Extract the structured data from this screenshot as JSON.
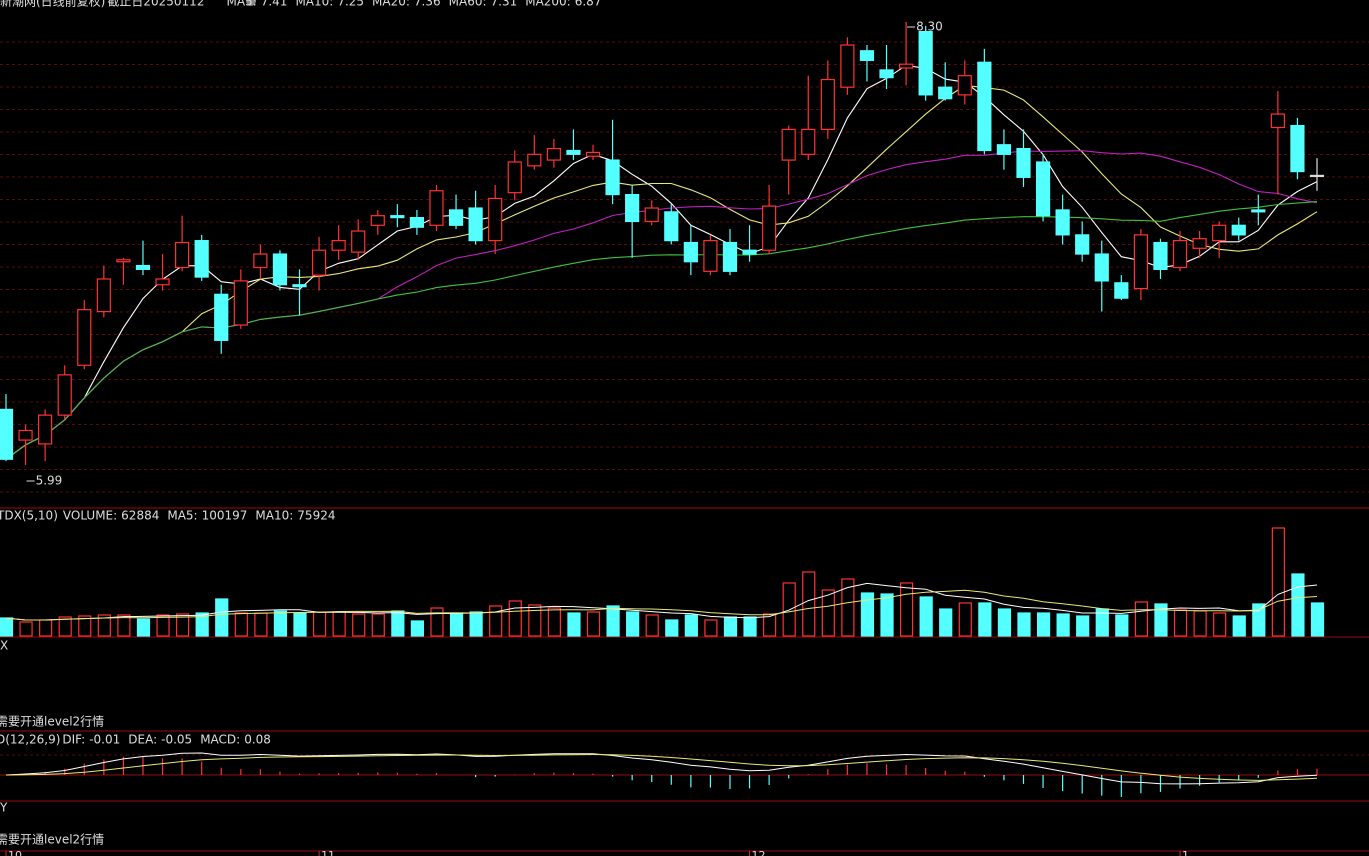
{
  "chart_data": [
    {
      "type": "candlestick",
      "title": "新潮网(日线前复权)",
      "subtitle": "截止日20250112",
      "up_color": "#ff3232",
      "down_color": "#54ffff",
      "flat_color": "#dddddd",
      "ma": [
        {
          "label": "MA5:",
          "period": 5,
          "value": 7.41,
          "color": "#ffffff"
        },
        {
          "label": "MA10:",
          "period": 10,
          "value": 7.25,
          "color": "#e8e87a"
        },
        {
          "label": "MA20:",
          "period": 20,
          "value": 7.36,
          "color": "#c020c0"
        },
        {
          "label": "MA60:",
          "period": 60,
          "value": 7.31,
          "color": "#40c040"
        },
        {
          "label": "MA200:",
          "period": 200,
          "value": 6.87,
          "color": "#b0b0b0"
        }
      ],
      "annotations": [
        {
          "value": 8.3,
          "label": "8.30"
        },
        {
          "value": 5.99,
          "label": "5.99"
        }
      ],
      "categories": [
        "10",
        null,
        null,
        null,
        null,
        null,
        null,
        null,
        null,
        null,
        null,
        null,
        null,
        null,
        null,
        null,
        "11",
        null,
        null,
        null,
        null,
        null,
        null,
        null,
        null,
        null,
        null,
        null,
        null,
        null,
        null,
        null,
        null,
        null,
        null,
        null,
        null,
        null,
        "12",
        null,
        null,
        null,
        null,
        null,
        null,
        null,
        null,
        null,
        null,
        null,
        null,
        null,
        null,
        null,
        null,
        null,
        null,
        null,
        null,
        null,
        "1",
        null,
        null,
        null,
        null,
        null,
        null,
        null
      ],
      "open": [
        6.28,
        6.12,
        6.1,
        6.25,
        6.51,
        6.79,
        7.05,
        7.03,
        6.93,
        7.02,
        7.16,
        6.88,
        6.72,
        7.02,
        7.09,
        6.93,
        6.98,
        7.11,
        7.1,
        7.24,
        7.29,
        7.28,
        7.24,
        7.32,
        7.33,
        7.16,
        7.41,
        7.55,
        7.58,
        7.63,
        7.6,
        7.58,
        7.4,
        7.26,
        7.31,
        7.15,
        7.0,
        7.15,
        7.11,
        7.11,
        7.58,
        7.61,
        7.74,
        7.96,
        8.15,
        8.05,
        8.06,
        8.25,
        7.96,
        7.92,
        8.09,
        7.66,
        7.64,
        7.57,
        7.32,
        7.19,
        7.09,
        6.94,
        6.91,
        7.15,
        7.02,
        7.12,
        7.16,
        7.24,
        7.32,
        7.75,
        7.76,
        7.5
      ],
      "high": [
        6.36,
        6.2,
        6.28,
        6.51,
        6.85,
        7.03,
        7.07,
        7.16,
        7.09,
        7.29,
        7.19,
        6.93,
        7.01,
        7.14,
        7.11,
        7.01,
        7.18,
        7.24,
        7.27,
        7.32,
        7.35,
        7.32,
        7.45,
        7.4,
        7.42,
        7.45,
        7.63,
        7.71,
        7.69,
        7.74,
        7.66,
        7.79,
        7.45,
        7.37,
        7.35,
        7.24,
        7.19,
        7.22,
        7.24,
        7.45,
        7.76,
        8.02,
        8.1,
        8.22,
        8.18,
        8.18,
        8.3,
        8.28,
        8.09,
        8.1,
        8.16,
        7.74,
        7.74,
        7.61,
        7.4,
        7.26,
        7.16,
        6.98,
        7.22,
        7.17,
        7.21,
        7.21,
        7.26,
        7.28,
        7.4,
        7.94,
        7.8,
        7.59
      ],
      "low": [
        6.01,
        5.99,
        6.01,
        6.23,
        6.49,
        6.76,
        6.93,
        6.98,
        6.9,
        7.0,
        6.95,
        6.57,
        6.7,
        6.96,
        6.9,
        6.77,
        6.9,
        7.06,
        7.06,
        7.19,
        7.23,
        7.19,
        7.21,
        7.22,
        7.14,
        7.09,
        7.37,
        7.53,
        7.54,
        7.58,
        7.58,
        7.35,
        7.07,
        7.24,
        7.14,
        6.98,
        6.98,
        6.98,
        7.05,
        7.09,
        7.4,
        7.58,
        7.69,
        7.92,
        7.99,
        7.95,
        7.97,
        7.89,
        7.89,
        7.87,
        7.61,
        7.53,
        7.44,
        7.26,
        7.14,
        7.05,
        6.79,
        6.85,
        6.85,
        6.96,
        7.0,
        7.07,
        7.07,
        7.16,
        7.24,
        7.4,
        7.48,
        7.42
      ],
      "close": [
        6.02,
        6.17,
        6.25,
        6.46,
        6.8,
        6.96,
        7.06,
        7.01,
        6.96,
        7.15,
        6.97,
        6.64,
        6.95,
        7.09,
        6.93,
        6.92,
        7.11,
        7.16,
        7.21,
        7.29,
        7.28,
        7.23,
        7.42,
        7.24,
        7.16,
        7.38,
        7.57,
        7.61,
        7.64,
        7.61,
        7.62,
        7.4,
        7.26,
        7.33,
        7.16,
        7.05,
        7.16,
        7.0,
        7.09,
        7.34,
        7.74,
        7.74,
        8.0,
        8.18,
        8.1,
        8.01,
        8.08,
        7.92,
        7.9,
        8.02,
        7.63,
        7.61,
        7.49,
        7.29,
        7.19,
        7.09,
        6.95,
        6.86,
        7.19,
        7.01,
        7.16,
        7.17,
        7.24,
        7.19,
        7.31,
        7.82,
        7.52,
        7.5
      ]
    },
    {
      "type": "volume",
      "title": "TDX(5,10)",
      "legend": [
        {
          "label": "VOLUME:",
          "value": 62884,
          "color": "#ffffff"
        },
        {
          "label": "MA5:",
          "period": 5,
          "value": 100197,
          "color": "#ffffff"
        },
        {
          "label": "MA10:",
          "period": 10,
          "value": 75924,
          "color": "#e8e87a"
        }
      ],
      "sub_label": "X",
      "notice": "需要开通level2行情",
      "values": [
        34300,
        26700,
        30500,
        36200,
        38100,
        40000,
        40000,
        32400,
        40000,
        41900,
        43800,
        70500,
        43800,
        43800,
        47600,
        43800,
        45700,
        45700,
        41900,
        41900,
        47600,
        28600,
        53300,
        43800,
        45700,
        57200,
        66700,
        59100,
        53300,
        43800,
        45700,
        57200,
        45700,
        40000,
        30500,
        40000,
        30500,
        36200,
        36200,
        41900,
        101000,
        121900,
        87600,
        108600,
        81900,
        80000,
        101000,
        74300,
        51400,
        62900,
        62900,
        51400,
        43800,
        43800,
        41900,
        38100,
        51400,
        40000,
        64800,
        61000,
        49500,
        47600,
        43800,
        38100,
        61000,
        205700,
        118100,
        62884
      ]
    },
    {
      "type": "macd",
      "title": "D(12,26,9)",
      "params": [
        12,
        26,
        9
      ],
      "legend": [
        {
          "label": "DIF:",
          "value": -0.01,
          "color": "#ffffff"
        },
        {
          "label": "DEA:",
          "value": -0.05,
          "color": "#e8e87a"
        },
        {
          "label": "MACD:",
          "value": 0.08,
          "color": "#ff40ff"
        }
      ],
      "sub_label": "Y",
      "notice": "需要开通level2行情"
    }
  ]
}
